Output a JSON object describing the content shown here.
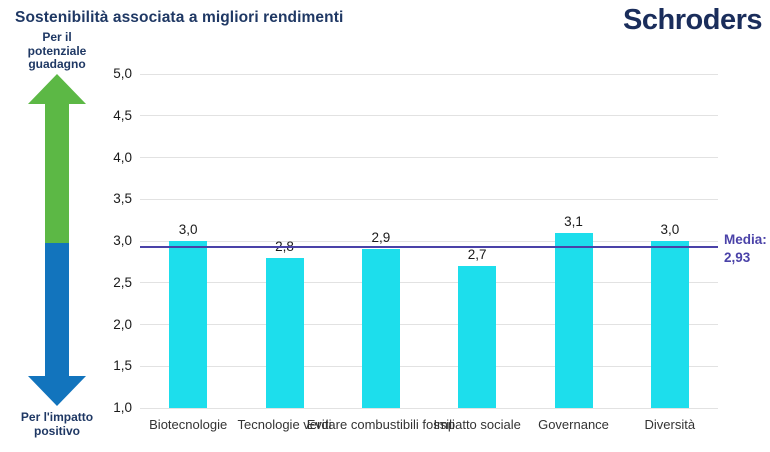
{
  "header": {
    "title": "Sostenibilità associata a migliori rendimenti",
    "logo_text": "Schroders"
  },
  "gain_axis": {
    "up_arrow_icon": "up-arrow",
    "down_arrow_icon": "down-arrow",
    "top_label_lines": [
      "Per il",
      "potenziale",
      "guadagno"
    ],
    "bottom_label_lines": [
      "Per l'impatto",
      "positivo"
    ]
  },
  "chart_data": {
    "type": "bar",
    "title": "Sostenibilità associata a migliori rendimenti",
    "categories": [
      "Biotecnologie",
      "Tecnologie verdi",
      "Evitare combustibili fossili",
      "Impatto sociale",
      "Governance",
      "Diversità"
    ],
    "values": [
      3.0,
      2.8,
      2.9,
      2.7,
      3.1,
      3.0
    ],
    "value_labels": [
      "3,0",
      "2,8",
      "2,9",
      "2,7",
      "3,1",
      "3,0"
    ],
    "y_ticks": [
      5.0,
      4.5,
      4.0,
      3.5,
      3.0,
      2.5,
      2.0,
      1.5,
      1.0
    ],
    "y_tick_labels": [
      "5,0",
      "4,5",
      "4,0",
      "3,5",
      "3,0",
      "2,5",
      "2,0",
      "1,5",
      "1,0"
    ],
    "ylim": [
      1.0,
      5.0
    ],
    "grid": true,
    "legend": "none",
    "mean_value": 2.93,
    "mean_label_lines": [
      "Media:",
      "2,93"
    ]
  },
  "colors": {
    "bar": "#1ddeec",
    "mean_line": "#4a42a8",
    "arrow_green": "#5cb845",
    "arrow_blue": "#1274bd",
    "navy": "#1f3864",
    "gridline": "#e2e2e2"
  }
}
